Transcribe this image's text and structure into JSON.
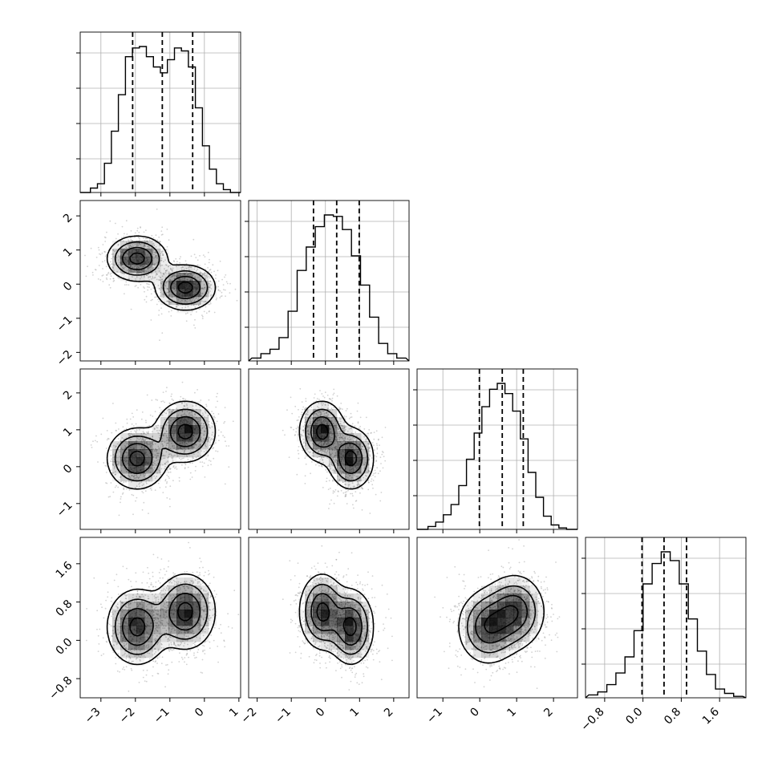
{
  "chart_data": {
    "type": "corner",
    "title": "",
    "n_params": 4,
    "colors": {
      "ink": "#000000",
      "grid": "#b0b0b0",
      "points": "#7f7f7f",
      "frame": "#000000"
    },
    "grid": true,
    "params": [
      {
        "range": [
          -3.6,
          1.05
        ],
        "ticks": [
          -3,
          -2,
          -1,
          0,
          1
        ],
        "tick_labels": [
          "−3",
          "−2",
          "−1",
          "0",
          "1"
        ],
        "quantiles": [
          -2.08,
          -1.22,
          -0.34
        ],
        "hist_bins": [
          0.0,
          0.03,
          0.06,
          0.2,
          0.42,
          0.67,
          0.93,
          0.99,
          1.0,
          0.93,
          0.86,
          0.82,
          0.91,
          0.99,
          0.97,
          0.86,
          0.58,
          0.32,
          0.16,
          0.06,
          0.02,
          0.0
        ]
      },
      {
        "range": [
          -2.25,
          2.45
        ],
        "ticks": [
          -2,
          -1,
          0,
          1,
          2
        ],
        "tick_labels": [
          "−2",
          "−1",
          "0",
          "1",
          "2"
        ],
        "quantiles": [
          -0.35,
          0.33,
          0.99
        ],
        "hist_bins": [
          0.02,
          0.05,
          0.08,
          0.16,
          0.34,
          0.62,
          0.78,
          0.92,
          1.0,
          0.99,
          0.9,
          0.72,
          0.52,
          0.3,
          0.12,
          0.05,
          0.02
        ]
      },
      {
        "range": [
          -1.7,
          2.65
        ],
        "ticks": [
          -1,
          0,
          1,
          2
        ],
        "tick_labels": [
          "−1",
          "0",
          "1",
          "2"
        ],
        "quantiles": [
          -0.01,
          0.61,
          1.18
        ],
        "hist_bins": [
          0.0,
          0.02,
          0.05,
          0.1,
          0.17,
          0.3,
          0.48,
          0.66,
          0.84,
          0.96,
          1.0,
          0.93,
          0.81,
          0.62,
          0.39,
          0.22,
          0.09,
          0.03,
          0.01,
          0.0
        ]
      },
      {
        "range": [
          -1.2,
          2.15
        ],
        "ticks": [
          -0.8,
          0.0,
          0.8,
          1.6
        ],
        "tick_labels": [
          "−0.8",
          "0.0",
          "0.8",
          "1.6"
        ],
        "quantiles": [
          -0.02,
          0.44,
          0.91
        ],
        "hist_bins": [
          0.02,
          0.04,
          0.09,
          0.17,
          0.28,
          0.46,
          0.78,
          0.92,
          1.0,
          0.94,
          0.78,
          0.54,
          0.32,
          0.16,
          0.06,
          0.03,
          0.01
        ]
      }
    ],
    "modes": [
      {
        "weight": 0.5,
        "mean": [
          -1.95,
          0.75,
          0.22,
          0.28
        ],
        "sd": [
          0.42,
          0.32,
          0.4,
          0.38
        ]
      },
      {
        "weight": 0.5,
        "mean": [
          -0.55,
          -0.1,
          0.95,
          0.6
        ],
        "sd": [
          0.42,
          0.32,
          0.4,
          0.38
        ]
      }
    ],
    "y_axis_labels": {
      "1": [
        "−2",
        "−1",
        "0",
        "1",
        "2"
      ],
      "2": [
        "−1",
        "0",
        "1",
        "2"
      ],
      "3": [
        "−0.8",
        "0.0",
        "0.8",
        "1.6"
      ]
    }
  }
}
